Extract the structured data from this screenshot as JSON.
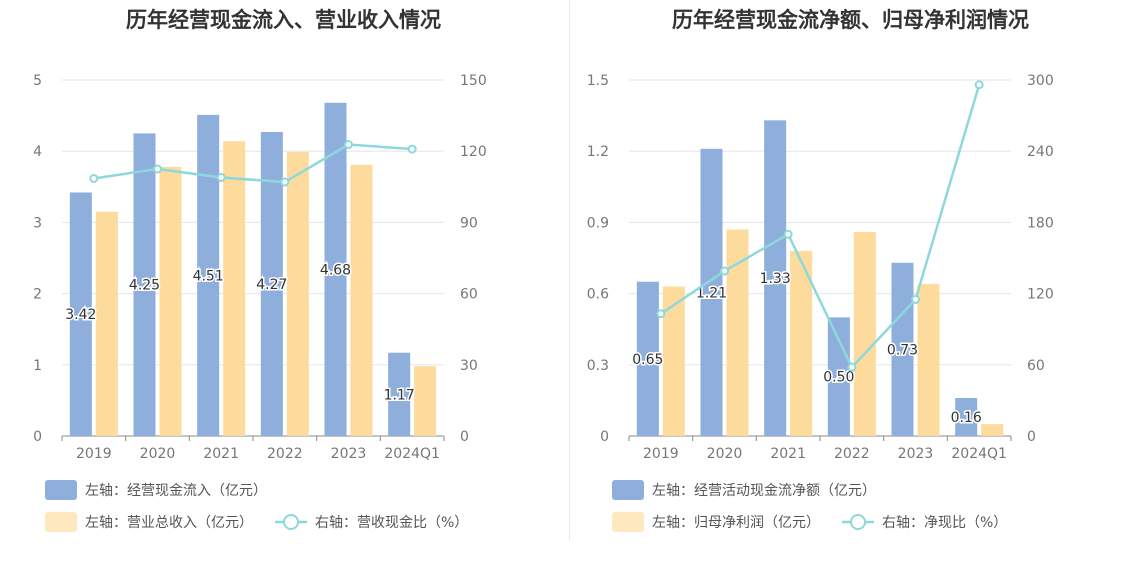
{
  "chart_data": [
    {
      "type": "bar",
      "title": "历年经营现金流入、营业收入情况",
      "categories": [
        "2019",
        "2020",
        "2021",
        "2022",
        "2023",
        "2024Q1"
      ],
      "left_axis": {
        "ylim": [
          0,
          5
        ],
        "ticks": [
          "0",
          "1",
          "2",
          "3",
          "4",
          "5"
        ]
      },
      "right_axis": {
        "ylim": [
          0,
          150
        ],
        "ticks": [
          "0",
          "30",
          "60",
          "90",
          "120",
          "150"
        ]
      },
      "grid": true,
      "legend_position": "bottom-left",
      "series": [
        {
          "name": "左轴：经营现金流入（亿元）",
          "kind": "bar",
          "axis": "left",
          "color": "#8eaedc",
          "values": [
            3.42,
            4.25,
            4.51,
            4.27,
            4.68,
            1.17
          ],
          "labels": [
            "3.42",
            "4.25",
            "4.51",
            "4.27",
            "4.68",
            "1.17"
          ]
        },
        {
          "name": "左轴：营业总收入（亿元）",
          "kind": "bar",
          "axis": "left",
          "color": "#fddb9c",
          "values": [
            3.15,
            3.78,
            4.14,
            3.99,
            3.81,
            0.98
          ]
        },
        {
          "name": "右轴：营收现金比（%）",
          "kind": "line",
          "axis": "right",
          "color": "#8ed8dc",
          "values": [
            108.5,
            112.5,
            108.9,
            107.0,
            122.8,
            120.9
          ]
        }
      ]
    },
    {
      "type": "bar",
      "title": "历年经营现金流净额、归母净利润情况",
      "categories": [
        "2019",
        "2020",
        "2021",
        "2022",
        "2023",
        "2024Q1"
      ],
      "left_axis": {
        "ylim": [
          0,
          1.5
        ],
        "ticks": [
          "0",
          "0.3",
          "0.6",
          "0.9",
          "1.2",
          "1.5"
        ]
      },
      "right_axis": {
        "ylim": [
          0,
          300
        ],
        "ticks": [
          "0",
          "60",
          "120",
          "180",
          "240",
          "300"
        ]
      },
      "grid": true,
      "legend_position": "bottom-left",
      "series": [
        {
          "name": "左轴：经营活动现金流净额（亿元）",
          "kind": "bar",
          "axis": "left",
          "color": "#8eaedc",
          "values": [
            0.65,
            1.21,
            1.33,
            0.5,
            0.73,
            0.16
          ],
          "labels": [
            "0.65",
            "1.21",
            "1.33",
            "0.50",
            "0.73",
            "0.16"
          ]
        },
        {
          "name": "左轴：归母净利润（亿元）",
          "kind": "bar",
          "axis": "left",
          "color": "#fddb9c",
          "values": [
            0.63,
            0.87,
            0.78,
            0.86,
            0.64,
            0.05
          ]
        },
        {
          "name": "右轴：净现比（%）",
          "kind": "line",
          "axis": "right",
          "color": "#8ed8dc",
          "values": [
            103,
            139,
            170,
            58,
            115,
            296
          ]
        }
      ]
    }
  ]
}
